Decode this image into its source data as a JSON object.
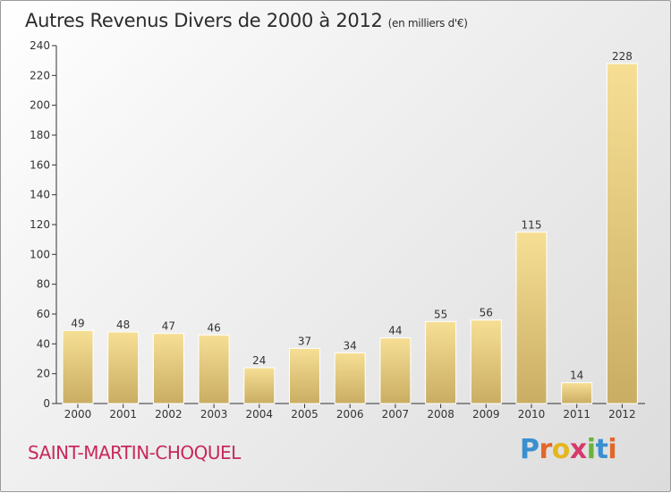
{
  "title": {
    "main": "Autres Revenus Divers de 2000 à 2012",
    "unit": "(en milliers d'€)"
  },
  "commune": "SAINT-MARTIN-CHOQUEL",
  "logo": {
    "letters": [
      {
        "ch": "P",
        "color": "#3a8fd0"
      },
      {
        "ch": "r",
        "color": "#e2672a"
      },
      {
        "ch": "o",
        "color": "#e6b61e"
      },
      {
        "ch": "x",
        "color": "#d63a6a"
      },
      {
        "ch": "i",
        "color": "#6ab33b"
      },
      {
        "ch": "t",
        "color": "#3a8fd0"
      },
      {
        "ch": "i",
        "color": "#e2672a"
      }
    ]
  },
  "chart_data": {
    "type": "bar",
    "title": "Autres Revenus Divers de 2000 à 2012",
    "subtitle": "(en milliers d'€)",
    "xlabel": "",
    "ylabel": "",
    "categories": [
      "2000",
      "2001",
      "2002",
      "2003",
      "2004",
      "2005",
      "2006",
      "2007",
      "2008",
      "2009",
      "2010",
      "2011",
      "2012"
    ],
    "values": [
      49,
      48,
      47,
      46,
      24,
      37,
      34,
      44,
      55,
      56,
      115,
      14,
      228
    ],
    "ylim": [
      0,
      240
    ],
    "yticks": [
      0,
      20,
      40,
      60,
      80,
      100,
      120,
      140,
      160,
      180,
      200,
      220,
      240
    ],
    "grid": false,
    "legend": "none",
    "colors": {
      "bar_top": "#f6df95",
      "bar_bottom": "#c9ad62",
      "axis": "#333333",
      "label": "#333333"
    }
  }
}
